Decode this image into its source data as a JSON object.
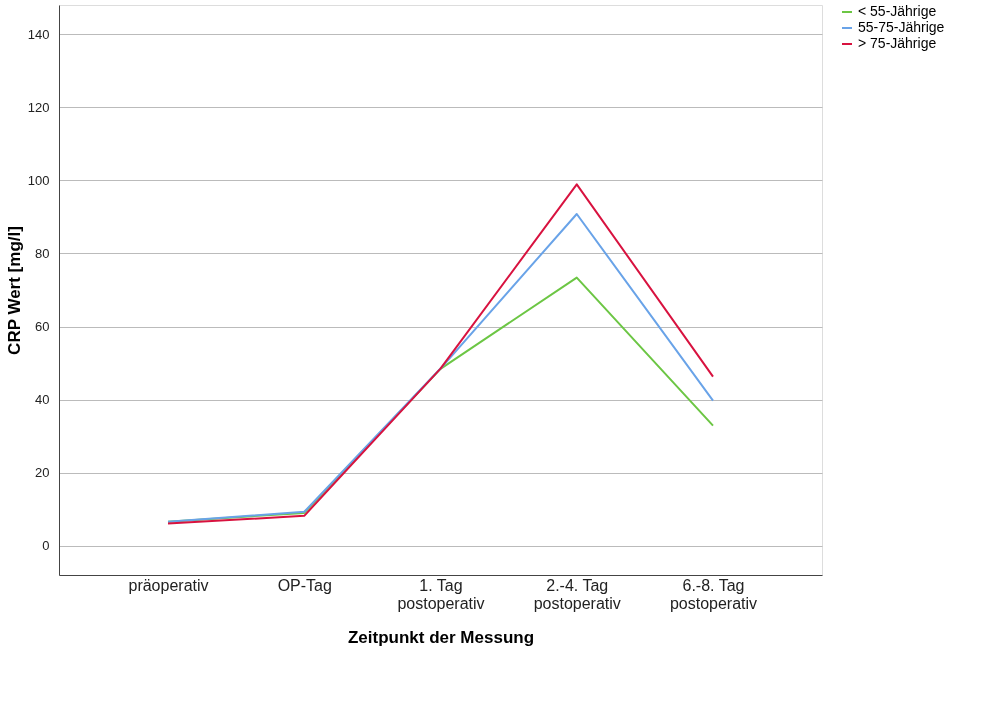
{
  "chart_data": {
    "type": "line",
    "xlabel": "Zeitpunkt der Messung",
    "ylabel": "CRP Wert [mg/l]",
    "categories": [
      "präoperativ",
      "OP-Tag",
      "1. Tag\npostoperativ",
      "2.-4. Tag\npostoperativ",
      "6.-8. Tag\npostoperativ"
    ],
    "series": [
      {
        "name": "< 55-Jährige",
        "color": "#6cc644",
        "values": [
          6.6,
          9.0,
          48.4,
          73.4,
          32.9
        ]
      },
      {
        "name": "55-75-Jährige",
        "color": "#69a3e8",
        "values": [
          6.6,
          9.3,
          48.5,
          90.8,
          39.7
        ]
      },
      {
        "name": "> 75-Jährige",
        "color": "#d8123f",
        "values": [
          6.1,
          8.2,
          48.5,
          98.9,
          46.3
        ]
      }
    ],
    "ylim": [
      -8,
      148
    ],
    "yticks": [
      0,
      20,
      40,
      60,
      80,
      100,
      120,
      140
    ],
    "grid": "y",
    "legend": "right",
    "line_style": "solid",
    "marker": "none"
  }
}
